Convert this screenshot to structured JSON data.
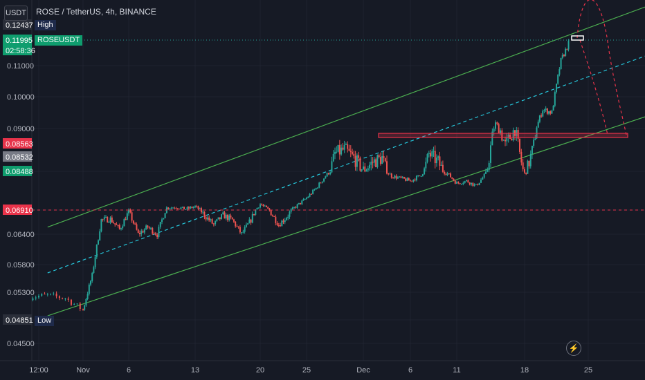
{
  "header": {
    "currency_badge": "USDT",
    "symbol_title": "ROSE / TetherUS, 4h, BINANCE"
  },
  "price_axis": {
    "ticks": [
      "0.11000",
      "0.10000",
      "0.09000",
      "0.06400",
      "0.05800",
      "0.05300",
      "0.04500"
    ],
    "tags": [
      {
        "text": "0.12437",
        "color": "#2a2e39"
      },
      {
        "text": "0.11995",
        "color": "#0f9d6e"
      },
      {
        "text": "02:58:36",
        "color": "#0f9d6e"
      },
      {
        "text": "0.08563",
        "color": "#e8334a"
      },
      {
        "text": "0.08532",
        "color": "#787b86"
      },
      {
        "text": "0.08488",
        "color": "#0f9d6e"
      },
      {
        "text": "0.06910",
        "color": "#e8334a"
      },
      {
        "text": "0.04851",
        "color": "#2a2e39"
      }
    ],
    "labels": {
      "high": "High",
      "symbol": "ROSEUSDT",
      "low": "Low"
    }
  },
  "time_axis": {
    "ticks": [
      "12:00",
      "Nov",
      "6",
      "13",
      "20",
      "25",
      "Dec",
      "6",
      "11",
      "18",
      "25"
    ]
  },
  "icons": {
    "flash": "lightning-icon"
  },
  "chart_data": {
    "type": "candlestick",
    "title": "ROSE / TetherUS, 4h, BINANCE",
    "ylim": [
      0.043,
      0.128
    ],
    "last_price": 0.11995,
    "high": 0.12437,
    "low": 0.04851,
    "horizontal_levels": [
      0.0691,
      0.08563
    ],
    "support_zone": [
      0.08488,
      0.08563
    ],
    "channel": {
      "upper": [
        [
          "Oct 30",
          0.0655
        ],
        [
          "Dec 26",
          0.1245
        ]
      ],
      "middle": [
        [
          "Oct 30",
          0.0565
        ],
        [
          "Dec 26",
          0.1075
        ]
      ],
      "lower": [
        [
          "Oct 30",
          0.049
        ],
        [
          "Dec 26",
          0.0895
        ]
      ]
    },
    "colors": {
      "up": "#26a69a",
      "down": "#ef5350",
      "channel": "#4caf50",
      "mid": "#26c6da",
      "level": "#e8334a"
    },
    "close_path": [
      [
        "Oct 29",
        0.0522
      ],
      [
        "Oct 30",
        0.0525
      ],
      [
        "Oct 31",
        0.052
      ],
      [
        "Nov 1",
        0.05
      ],
      [
        "Nov 2",
        0.056
      ],
      [
        "Nov 3",
        0.067
      ],
      [
        "Nov 4",
        0.0672
      ],
      [
        "Nov 5",
        0.065
      ],
      [
        "Nov 6",
        0.0688
      ],
      [
        "Nov 7",
        0.064
      ],
      [
        "Nov 8",
        0.0655
      ],
      [
        "Nov 9",
        0.064
      ],
      [
        "Nov 10",
        0.07
      ],
      [
        "Nov 11",
        0.0703
      ],
      [
        "Nov 12",
        0.0695
      ],
      [
        "Nov 13",
        0.0705
      ],
      [
        "Nov 14",
        0.068
      ],
      [
        "Nov 15",
        0.066
      ],
      [
        "Nov 16",
        0.068
      ],
      [
        "Nov 17",
        0.067
      ],
      [
        "Nov 18",
        0.064
      ],
      [
        "Nov 19",
        0.067
      ],
      [
        "Nov 20",
        0.0715
      ],
      [
        "Nov 21",
        0.069
      ],
      [
        "Nov 22",
        0.066
      ],
      [
        "Nov 23",
        0.068
      ],
      [
        "Nov 24",
        0.071
      ],
      [
        "Nov 25",
        0.074
      ],
      [
        "Nov 26",
        0.078
      ],
      [
        "Nov 27",
        0.083
      ],
      [
        "Nov 28",
        0.087
      ],
      [
        "Nov 29",
        0.0875
      ],
      [
        "Nov 30",
        0.0865
      ],
      [
        "Dec 1",
        0.085
      ],
      [
        "Dec 2",
        0.086
      ],
      [
        "Dec 3",
        0.0865
      ],
      [
        "Dec 4",
        0.083
      ],
      [
        "Dec 5",
        0.082
      ],
      [
        "Dec 6",
        0.081
      ],
      [
        "Dec 7",
        0.083
      ],
      [
        "Dec 8",
        0.087
      ],
      [
        "Dec 9",
        0.086
      ],
      [
        "Dec 10",
        0.084
      ],
      [
        "Dec 11",
        0.08
      ],
      [
        "Dec 12",
        0.081
      ],
      [
        "Dec 13",
        0.079
      ],
      [
        "Dec 14",
        0.084
      ],
      [
        "Dec 15",
        0.0915
      ],
      [
        "Dec 16",
        0.088
      ],
      [
        "Dec 17",
        0.09
      ],
      [
        "Dec 18",
        0.084
      ],
      [
        "Dec 19",
        0.088
      ],
      [
        "Dec 20",
        0.096
      ],
      [
        "Dec 21",
        0.095
      ],
      [
        "Dec 22",
        0.112
      ],
      [
        "Dec 23",
        0.1199
      ]
    ]
  }
}
